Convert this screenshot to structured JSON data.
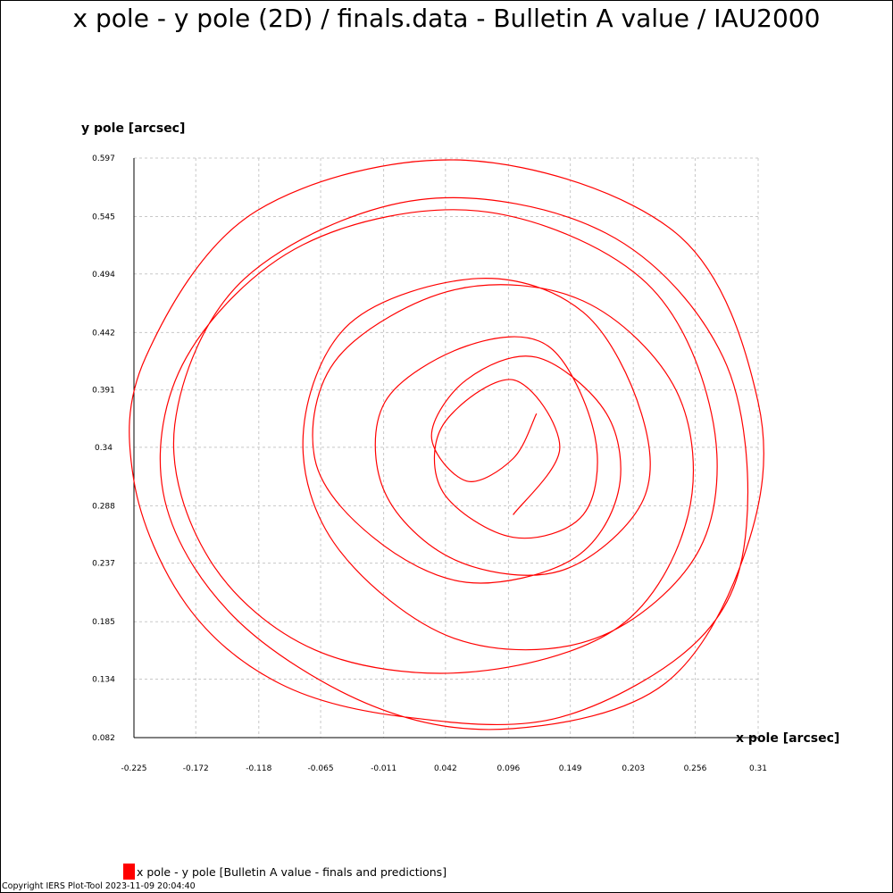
{
  "chart_data": {
    "type": "line",
    "title": "x pole - y pole (2D) / finals.data - Bulletin A value / IAU2000",
    "xlabel": "x pole [arcsec]",
    "ylabel": "y pole [arcsec]",
    "xlim": [
      -0.225,
      0.31
    ],
    "ylim": [
      0.082,
      0.597
    ],
    "x_ticks": [
      "-0.225",
      "-0.172",
      "-0.118",
      "-0.065",
      "-0.011",
      "0.042",
      "0.096",
      "0.149",
      "0.203",
      "0.256",
      "0.31"
    ],
    "y_ticks": [
      "0.597",
      "0.545",
      "0.494",
      "0.442",
      "0.391",
      "0.34",
      "0.288",
      "0.237",
      "0.185",
      "0.134",
      "0.082"
    ],
    "grid": true,
    "legend_position": "bottom-left",
    "series": [
      {
        "name": "x pole - y pole [Bulletin A value - finals and predictions]",
        "color": "#ff0000",
        "shape": "approximate polar-motion spiral, traced from the plot",
        "points": [
          [
            0.1,
            0.28
          ],
          [
            0.14,
            0.34
          ],
          [
            0.1,
            0.4
          ],
          [
            0.04,
            0.36
          ],
          [
            0.04,
            0.3
          ],
          [
            0.1,
            0.26
          ],
          [
            0.16,
            0.28
          ],
          [
            0.17,
            0.35
          ],
          [
            0.13,
            0.43
          ],
          [
            0.06,
            0.43
          ],
          [
            -0.01,
            0.38
          ],
          [
            -0.01,
            0.3
          ],
          [
            0.05,
            0.24
          ],
          [
            0.14,
            0.23
          ],
          [
            0.21,
            0.29
          ],
          [
            0.21,
            0.37
          ],
          [
            0.16,
            0.46
          ],
          [
            0.07,
            0.49
          ],
          [
            -0.04,
            0.45
          ],
          [
            -0.08,
            0.35
          ],
          [
            -0.05,
            0.25
          ],
          [
            0.05,
            0.17
          ],
          [
            0.17,
            0.17
          ],
          [
            0.26,
            0.25
          ],
          [
            0.27,
            0.37
          ],
          [
            0.21,
            0.49
          ],
          [
            0.07,
            0.55
          ],
          [
            -0.08,
            0.52
          ],
          [
            -0.18,
            0.42
          ],
          [
            -0.2,
            0.3
          ],
          [
            -0.14,
            0.19
          ],
          [
            -0.02,
            0.11
          ],
          [
            0.1,
            0.09
          ],
          [
            0.23,
            0.13
          ],
          [
            0.3,
            0.25
          ],
          [
            0.31,
            0.38
          ],
          [
            0.24,
            0.53
          ],
          [
            0.06,
            0.595
          ],
          [
            -0.12,
            0.55
          ],
          [
            -0.215,
            0.42
          ],
          [
            -0.225,
            0.31
          ],
          [
            -0.18,
            0.2
          ],
          [
            -0.1,
            0.13
          ],
          [
            0.01,
            0.1
          ],
          [
            0.14,
            0.1
          ],
          [
            0.26,
            0.17
          ],
          [
            0.3,
            0.27
          ],
          [
            0.28,
            0.42
          ],
          [
            0.18,
            0.53
          ],
          [
            0.02,
            0.56
          ],
          [
            -0.13,
            0.49
          ],
          [
            -0.19,
            0.36
          ],
          [
            -0.16,
            0.24
          ],
          [
            -0.07,
            0.16
          ],
          [
            0.06,
            0.14
          ],
          [
            0.19,
            0.18
          ],
          [
            0.25,
            0.28
          ],
          [
            0.24,
            0.39
          ],
          [
            0.16,
            0.47
          ],
          [
            0.05,
            0.48
          ],
          [
            -0.05,
            0.42
          ],
          [
            -0.07,
            0.33
          ],
          [
            -0.02,
            0.26
          ],
          [
            0.06,
            0.22
          ],
          [
            0.15,
            0.24
          ],
          [
            0.19,
            0.3
          ],
          [
            0.18,
            0.37
          ],
          [
            0.12,
            0.42
          ],
          [
            0.06,
            0.4
          ],
          [
            0.03,
            0.35
          ],
          [
            0.06,
            0.31
          ],
          [
            0.1,
            0.33
          ],
          [
            0.12,
            0.37
          ]
        ]
      }
    ]
  },
  "legend": {
    "label": "x pole - y pole [Bulletin A value - finals and predictions]"
  },
  "copyright": "Copyright IERS Plot-Tool 2023-11-09 20:04:40"
}
